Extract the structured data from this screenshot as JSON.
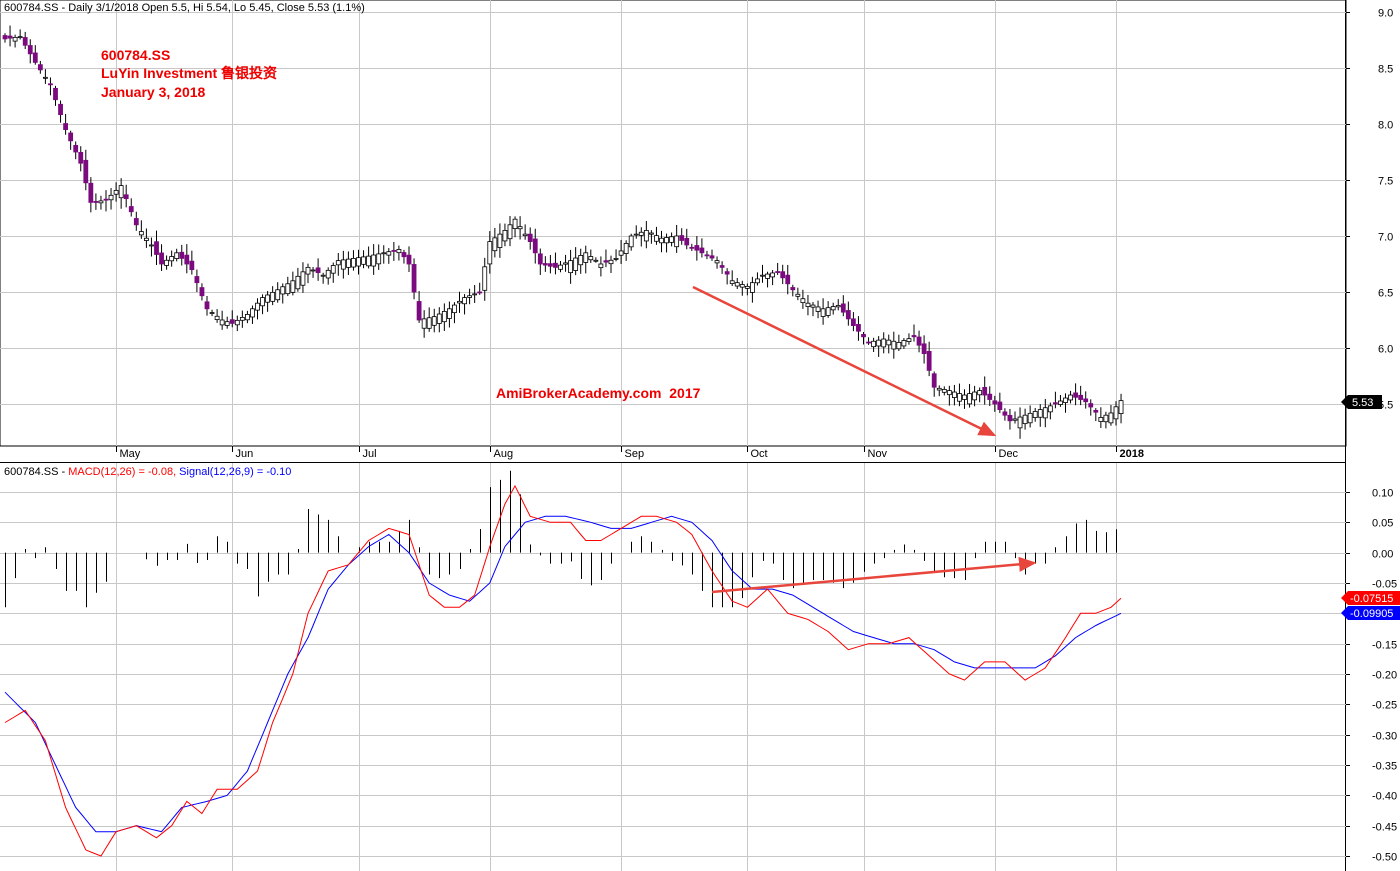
{
  "header": {
    "price_title": "600784.SS - Daily 3/1/2018 Open 5.5, Hi 5.54, Lo 5.45, Close 5.53 (1.1%)",
    "macd_prefix": "600784.SS - ",
    "macd_label": "MACD(12,26) = -0.08,",
    "signal_label": " Signal(12,26,9) = -0.10"
  },
  "annotations": {
    "ticker": "600784.SS",
    "company": "LuYin Investment 鲁银投资",
    "date": "January 3, 2018",
    "watermark": "AmiBrokerAcademy.com  2017"
  },
  "colors": {
    "up": "#ffffff",
    "down": "#7b0a7f",
    "wick": "#000000",
    "macd": "#ff0000",
    "signal": "#0000ff",
    "histogram": "#000000",
    "grid": "#c8c8c8",
    "arrow": "#e8463c",
    "annotation": "#ee0000"
  },
  "chart_data": [
    {
      "type": "candlestick",
      "title": "600784.SS - Daily 3/1/2018 Open 5.5, Hi 5.54, Lo 5.45, Close 5.53 (1.1%)",
      "y_ticks": [
        5.5,
        6.0,
        6.5,
        7.0,
        7.5,
        8.0,
        8.5,
        9.0
      ],
      "ylim": [
        5.05,
        9.1
      ],
      "x_tick_labels": [
        "May",
        "Jun",
        "Jul",
        "Aug",
        "Sep",
        "Oct",
        "Nov",
        "Dec",
        "2018"
      ],
      "x_tick_bar_index": [
        22,
        45,
        70,
        96,
        122,
        147,
        170,
        196,
        220
      ],
      "last_value_label": "5.53",
      "bar_count": 222,
      "close_anchors": [
        [
          0,
          8.76
        ],
        [
          3,
          8.78
        ],
        [
          6,
          8.55
        ],
        [
          9,
          8.35
        ],
        [
          12,
          7.95
        ],
        [
          15,
          7.65
        ],
        [
          17,
          7.3
        ],
        [
          20,
          7.32
        ],
        [
          23,
          7.45
        ],
        [
          26,
          7.1
        ],
        [
          29,
          6.92
        ],
        [
          31,
          6.75
        ],
        [
          34,
          6.85
        ],
        [
          37,
          6.7
        ],
        [
          40,
          6.35
        ],
        [
          43,
          6.25
        ],
        [
          45,
          6.22
        ],
        [
          48,
          6.3
        ],
        [
          51,
          6.45
        ],
        [
          54,
          6.52
        ],
        [
          57,
          6.6
        ],
        [
          60,
          6.72
        ],
        [
          63,
          6.65
        ],
        [
          66,
          6.78
        ],
        [
          69,
          6.8
        ],
        [
          72,
          6.82
        ],
        [
          75,
          6.85
        ],
        [
          78,
          6.88
        ],
        [
          80,
          6.75
        ],
        [
          82,
          6.25
        ],
        [
          85,
          6.28
        ],
        [
          88,
          6.35
        ],
        [
          91,
          6.45
        ],
        [
          94,
          6.5
        ],
        [
          96,
          6.95
        ],
        [
          99,
          7.05
        ],
        [
          101,
          7.15
        ],
        [
          104,
          6.95
        ],
        [
          106,
          6.75
        ],
        [
          109,
          6.72
        ],
        [
          112,
          6.78
        ],
        [
          115,
          6.85
        ],
        [
          118,
          6.75
        ],
        [
          121,
          6.8
        ],
        [
          124,
          7.0
        ],
        [
          127,
          7.05
        ],
        [
          130,
          6.98
        ],
        [
          133,
          7.0
        ],
        [
          135,
          6.92
        ],
        [
          138,
          6.85
        ],
        [
          141,
          6.78
        ],
        [
          144,
          6.6
        ],
        [
          147,
          6.55
        ],
        [
          150,
          6.65
        ],
        [
          153,
          6.68
        ],
        [
          156,
          6.52
        ],
        [
          159,
          6.4
        ],
        [
          162,
          6.35
        ],
        [
          165,
          6.38
        ],
        [
          168,
          6.2
        ],
        [
          171,
          6.05
        ],
        [
          174,
          6.08
        ],
        [
          177,
          6.05
        ],
        [
          180,
          6.1
        ],
        [
          182,
          5.95
        ],
        [
          184,
          5.65
        ],
        [
          187,
          5.62
        ],
        [
          190,
          5.58
        ],
        [
          193,
          5.62
        ],
        [
          196,
          5.5
        ],
        [
          199,
          5.35
        ],
        [
          202,
          5.4
        ],
        [
          205,
          5.45
        ],
        [
          208,
          5.5
        ],
        [
          211,
          5.58
        ],
        [
          214,
          5.52
        ],
        [
          217,
          5.38
        ],
        [
          219,
          5.42
        ],
        [
          221,
          5.53
        ]
      ]
    },
    {
      "type": "macd",
      "title": "600784.SS - MACD(12,26) = -0.08, Signal(12,26,9) = -0.10",
      "y_ticks": [
        0.1,
        0.05,
        0.0,
        -0.05,
        -0.1,
        -0.15,
        -0.2,
        -0.25,
        -0.3,
        -0.35,
        -0.4,
        -0.45,
        -0.5
      ],
      "y_tick_labels": [
        "0.10",
        "0.05",
        "0.00",
        "-0.05",
        "-0.10",
        "-0.15",
        "-0.20",
        "-0.25",
        "-0.30",
        "-0.35",
        "-0.40",
        "-0.45",
        "-0.50"
      ],
      "ylim": [
        -0.53,
        0.13
      ],
      "macd_last_label": "-0.07515",
      "signal_last_label": "-0.09905",
      "series": [
        {
          "name": "MACD(12,26)",
          "color": "#ff0000",
          "anchors": [
            [
              0,
              -0.28
            ],
            [
              4,
              -0.26
            ],
            [
              8,
              -0.31
            ],
            [
              12,
              -0.42
            ],
            [
              16,
              -0.49
            ],
            [
              19,
              -0.5
            ],
            [
              22,
              -0.46
            ],
            [
              26,
              -0.45
            ],
            [
              30,
              -0.47
            ],
            [
              33,
              -0.45
            ],
            [
              36,
              -0.41
            ],
            [
              39,
              -0.43
            ],
            [
              42,
              -0.39
            ],
            [
              46,
              -0.39
            ],
            [
              50,
              -0.36
            ],
            [
              53,
              -0.28
            ],
            [
              57,
              -0.2
            ],
            [
              60,
              -0.1
            ],
            [
              64,
              -0.03
            ],
            [
              68,
              -0.02
            ],
            [
              72,
              0.02
            ],
            [
              76,
              0.04
            ],
            [
              80,
              0.03
            ],
            [
              84,
              -0.07
            ],
            [
              87,
              -0.09
            ],
            [
              90,
              -0.09
            ],
            [
              93,
              -0.07
            ],
            [
              96,
              0.01
            ],
            [
              99,
              0.08
            ],
            [
              101,
              0.11
            ],
            [
              104,
              0.06
            ],
            [
              108,
              0.05
            ],
            [
              112,
              0.05
            ],
            [
              115,
              0.02
            ],
            [
              118,
              0.02
            ],
            [
              122,
              0.04
            ],
            [
              126,
              0.06
            ],
            [
              129,
              0.06
            ],
            [
              133,
              0.05
            ],
            [
              136,
              0.03
            ],
            [
              140,
              -0.03
            ],
            [
              144,
              -0.08
            ],
            [
              147,
              -0.09
            ],
            [
              151,
              -0.06
            ],
            [
              155,
              -0.1
            ],
            [
              159,
              -0.11
            ],
            [
              163,
              -0.13
            ],
            [
              167,
              -0.16
            ],
            [
              171,
              -0.15
            ],
            [
              175,
              -0.15
            ],
            [
              179,
              -0.14
            ],
            [
              183,
              -0.17
            ],
            [
              187,
              -0.2
            ],
            [
              190,
              -0.21
            ],
            [
              194,
              -0.18
            ],
            [
              198,
              -0.18
            ],
            [
              202,
              -0.21
            ],
            [
              206,
              -0.19
            ],
            [
              210,
              -0.14
            ],
            [
              213,
              -0.1
            ],
            [
              216,
              -0.1
            ],
            [
              219,
              -0.09
            ],
            [
              221,
              -0.075
            ]
          ]
        },
        {
          "name": "Signal(12,26,9)",
          "color": "#0000ff",
          "anchors": [
            [
              0,
              -0.23
            ],
            [
              6,
              -0.28
            ],
            [
              10,
              -0.35
            ],
            [
              14,
              -0.42
            ],
            [
              18,
              -0.46
            ],
            [
              22,
              -0.46
            ],
            [
              26,
              -0.45
            ],
            [
              31,
              -0.46
            ],
            [
              35,
              -0.42
            ],
            [
              40,
              -0.41
            ],
            [
              44,
              -0.4
            ],
            [
              48,
              -0.36
            ],
            [
              52,
              -0.28
            ],
            [
              56,
              -0.2
            ],
            [
              60,
              -0.14
            ],
            [
              64,
              -0.06
            ],
            [
              68,
              -0.02
            ],
            [
              72,
              0.01
            ],
            [
              76,
              0.03
            ],
            [
              80,
              0.0
            ],
            [
              84,
              -0.05
            ],
            [
              88,
              -0.07
            ],
            [
              92,
              -0.08
            ],
            [
              96,
              -0.05
            ],
            [
              99,
              0.01
            ],
            [
              103,
              0.05
            ],
            [
              107,
              0.06
            ],
            [
              111,
              0.06
            ],
            [
              116,
              0.05
            ],
            [
              120,
              0.04
            ],
            [
              124,
              0.04
            ],
            [
              128,
              0.05
            ],
            [
              132,
              0.06
            ],
            [
              136,
              0.05
            ],
            [
              140,
              0.02
            ],
            [
              144,
              -0.03
            ],
            [
              148,
              -0.06
            ],
            [
              152,
              -0.06
            ],
            [
              156,
              -0.07
            ],
            [
              160,
              -0.09
            ],
            [
              164,
              -0.11
            ],
            [
              168,
              -0.13
            ],
            [
              172,
              -0.14
            ],
            [
              176,
              -0.15
            ],
            [
              180,
              -0.15
            ],
            [
              184,
              -0.16
            ],
            [
              188,
              -0.18
            ],
            [
              192,
              -0.19
            ],
            [
              196,
              -0.19
            ],
            [
              200,
              -0.19
            ],
            [
              204,
              -0.19
            ],
            [
              208,
              -0.17
            ],
            [
              212,
              -0.14
            ],
            [
              216,
              -0.12
            ],
            [
              221,
              -0.1
            ]
          ]
        }
      ]
    }
  ]
}
